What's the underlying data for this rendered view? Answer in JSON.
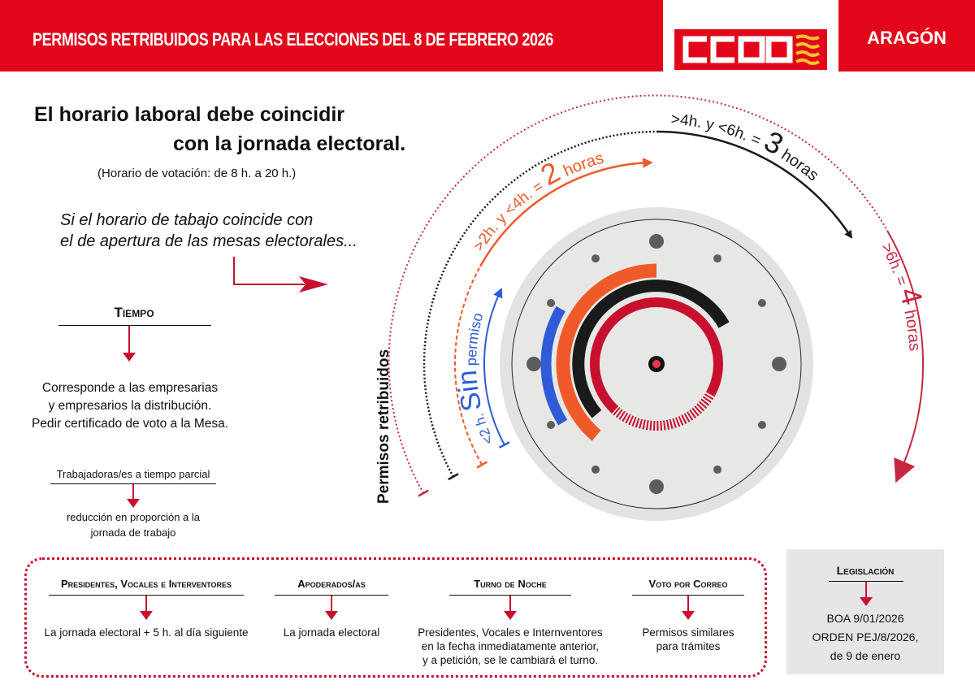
{
  "header": {
    "title": "PERMISOS RETRIBUIDOS PARA LAS ELECCIONES DEL 8 DE FEBRERO 2026",
    "logo_text": "CCOO",
    "region": "ARAGÓN"
  },
  "intro": {
    "headline_line1": "El horario laboral debe coincidir",
    "headline_line2": "con la jornada electoral.",
    "voting_hours": "(Horario de votación: de 8 h. a 20 h.)",
    "condition_line1": "Si el horario de tabajo coincide con",
    "condition_line2": "el de apertura de las mesas electorales..."
  },
  "tiempo": {
    "title": "Tiempo",
    "text_line1": "Corresponde a las empresarias",
    "text_line2": "y empresarios la distribución.",
    "text_line3": "Pedir certificado de voto a la Mesa.",
    "part_time_title": "Trabajadoras/es a tiempo parcial",
    "part_time_line1": "reducción en proporción a la",
    "part_time_line2": "jornada de trabajo"
  },
  "diagram": {
    "side_label": "Permisos retribuidos",
    "blue": {
      "prefix": "<2 h.",
      "big": "Sin",
      "suffix": "permiso",
      "color": "#2f5bd8"
    },
    "orange": {
      "prefix": ">2h. y <4h. = ",
      "big": "2",
      "suffix": " horas",
      "color": "#f05a28"
    },
    "black": {
      "prefix": ">4h. y <6h. = ",
      "big": "3",
      "suffix": " horas",
      "color": "#1a1a1a"
    },
    "red": {
      "prefix": ">6h. = ",
      "big": "4",
      "suffix": " horas",
      "color": "#c4283f"
    }
  },
  "special_cases": [
    {
      "title": "Presidentes, Vocales e Interventores",
      "lines": [
        "La jornada electoral + 5 h. al día siguiente"
      ]
    },
    {
      "title": "Apoderados/as",
      "lines": [
        "La jornada electoral"
      ]
    },
    {
      "title": "Turno de Noche",
      "lines": [
        "Presidentes, Vocales e Internventores",
        "en la fecha inmediatamente anterior,",
        "y a petición, se le cambiará el turno."
      ]
    },
    {
      "title": "Voto por Correo",
      "lines": [
        "Permisos similares",
        "para trámites"
      ]
    }
  ],
  "legislacion": {
    "title": "Legislación",
    "line1": "BOA 9/01/2026",
    "line2": "ORDEN PEJ/8/2026,",
    "line3": "de 9 de enero"
  },
  "colors": {
    "brand_red": "#e3061b",
    "accent_red": "#c8102e",
    "logo_yellow": "#f7c52b"
  }
}
